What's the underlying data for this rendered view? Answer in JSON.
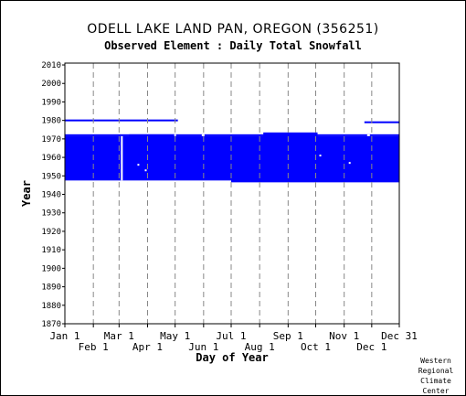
{
  "chart_data": {
    "type": "scatter",
    "title": "ODELL LAKE LAND PAN, OREGON   (356251)",
    "subtitle": "Observed Element : Daily Total Snowfall",
    "xlabel": "Day of Year",
    "ylabel": "Year",
    "x_ticks_top_row": [
      "Jan 1",
      "Mar 1",
      "May 1",
      "Jul 1",
      "Sep 1",
      "Nov 1",
      "Dec 31"
    ],
    "x_ticks_bottom_row": [
      "Feb 1",
      "Apr 1",
      "Jun 1",
      "Aug 1",
      "Oct 1",
      "Dec 1"
    ],
    "xlim": [
      1,
      365
    ],
    "ylim": [
      1870,
      2011
    ],
    "y_ticks": [
      1870,
      1880,
      1890,
      1900,
      1910,
      1920,
      1930,
      1940,
      1950,
      1960,
      1970,
      1980,
      1990,
      2000,
      2010
    ],
    "grid": true,
    "series_color": "#0000ff",
    "observed_records": [
      {
        "years": [
          1980,
          1980
        ],
        "days": [
          1,
          124
        ]
      },
      {
        "years": [
          1972,
          1972
        ],
        "days": [
          1,
          365
        ]
      },
      {
        "years": [
          1970,
          1971
        ],
        "days": [
          1,
          71
        ]
      },
      {
        "years": [
          1948,
          1971
        ],
        "days": [
          1,
          365
        ]
      },
      {
        "years": [
          1970,
          1972
        ],
        "days": [
          71,
          121
        ]
      },
      {
        "years": [
          1970,
          1971
        ],
        "days": [
          121,
          217
        ]
      },
      {
        "years": [
          1970,
          1973
        ],
        "days": [
          217,
          276
        ]
      },
      {
        "years": [
          1970,
          1970
        ],
        "days": [
          276,
          365
        ]
      },
      {
        "years": [
          1979,
          1979
        ],
        "days": [
          327,
          365
        ]
      },
      {
        "years": [
          1947,
          1948
        ],
        "days": [
          182,
          365
        ]
      }
    ],
    "missing_records": [
      {
        "years": [
          1948,
          1971
        ],
        "days": [
          62,
          64
        ]
      },
      {
        "years": [
          1972,
          1972
        ],
        "days": [
          120,
          122
        ]
      },
      {
        "years": [
          1972,
          1972
        ],
        "days": [
          150,
          153
        ]
      },
      {
        "years": [
          1972,
          1972
        ],
        "days": [
          330,
          333
        ]
      },
      {
        "years": [
          1956,
          1956
        ],
        "days": [
          80,
          82
        ]
      },
      {
        "years": [
          1953,
          1953
        ],
        "days": [
          88,
          90
        ]
      },
      {
        "years": [
          1961,
          1961
        ],
        "days": [
          278,
          280
        ]
      },
      {
        "years": [
          1957,
          1957
        ],
        "days": [
          310,
          312
        ]
      }
    ]
  },
  "credit": [
    "Western",
    "Regional",
    "Climate",
    "Center"
  ]
}
